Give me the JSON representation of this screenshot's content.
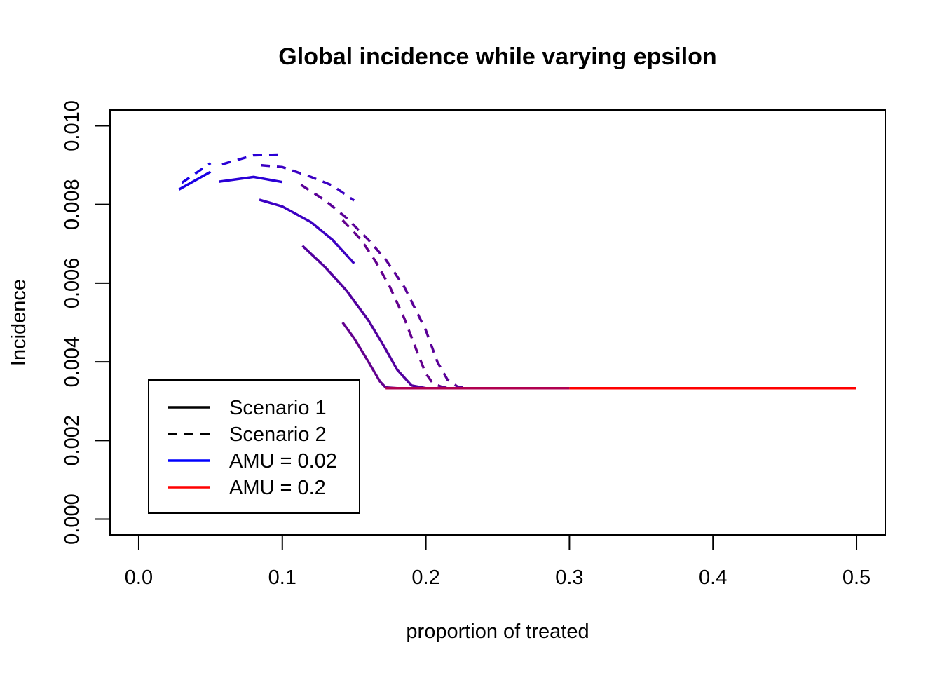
{
  "chart_data": {
    "type": "line",
    "title": "Global incidence while varying epsilon",
    "xlabel": "proportion of treated",
    "ylabel": "Incidence",
    "xlim": [
      -0.02,
      0.52
    ],
    "ylim": [
      -0.0004,
      0.0104
    ],
    "x_ticks": [
      0.0,
      0.1,
      0.2,
      0.3,
      0.4,
      0.5
    ],
    "x_tick_labels": [
      "0.0",
      "0.1",
      "0.2",
      "0.3",
      "0.4",
      "0.5"
    ],
    "y_ticks": [
      0.0,
      0.002,
      0.004,
      0.006,
      0.008,
      0.01
    ],
    "y_tick_labels": [
      "0.000",
      "0.002",
      "0.004",
      "0.006",
      "0.008",
      "0.010"
    ],
    "grid": false,
    "legend_position": "bottom-left",
    "legend": [
      {
        "label": "Scenario 1",
        "color": "#000000",
        "dash": "solid"
      },
      {
        "label": "Scenario 2",
        "color": "#000000",
        "dash": "dashed"
      },
      {
        "label": "AMU = 0.02",
        "color": "#0000FF",
        "dash": "solid"
      },
      {
        "label": "AMU = 0.2",
        "color": "#FF0000",
        "dash": "solid"
      }
    ],
    "series": [
      {
        "dash": "solid",
        "color": "#1A00E6",
        "points": [
          [
            0.028,
            0.00838
          ],
          [
            0.05,
            0.00883
          ]
        ]
      },
      {
        "dash": "dashed",
        "color": "#1A00E6",
        "points": [
          [
            0.03,
            0.00855
          ],
          [
            0.05,
            0.00905
          ]
        ]
      },
      {
        "dash": "solid",
        "color": "#2A00D6",
        "points": [
          [
            0.056,
            0.00858
          ],
          [
            0.08,
            0.0087
          ],
          [
            0.1,
            0.00857
          ]
        ]
      },
      {
        "dash": "dashed",
        "color": "#2A00D6",
        "points": [
          [
            0.058,
            0.00902
          ],
          [
            0.08,
            0.00925
          ],
          [
            0.1,
            0.00927
          ]
        ]
      },
      {
        "dash": "solid",
        "color": "#3C00C3",
        "points": [
          [
            0.084,
            0.00812
          ],
          [
            0.1,
            0.00795
          ],
          [
            0.12,
            0.00755
          ],
          [
            0.135,
            0.0071
          ],
          [
            0.15,
            0.0065
          ]
        ]
      },
      {
        "dash": "dashed",
        "color": "#3C00C3",
        "points": [
          [
            0.085,
            0.009
          ],
          [
            0.1,
            0.00895
          ],
          [
            0.12,
            0.0087
          ],
          [
            0.135,
            0.00848
          ],
          [
            0.15,
            0.0081
          ]
        ]
      },
      {
        "dash": "solid",
        "color": "#52009E",
        "points": [
          [
            0.114,
            0.00695
          ],
          [
            0.13,
            0.0064
          ],
          [
            0.145,
            0.0058
          ],
          [
            0.16,
            0.00505
          ],
          [
            0.17,
            0.00445
          ],
          [
            0.18,
            0.0038
          ],
          [
            0.19,
            0.0034
          ],
          [
            0.2,
            0.00333
          ],
          [
            0.205,
            0.00333
          ]
        ]
      },
      {
        "dash": "dashed",
        "color": "#5A0098",
        "points": [
          [
            0.113,
            0.0085
          ],
          [
            0.13,
            0.0081
          ],
          [
            0.145,
            0.00765
          ],
          [
            0.16,
            0.0071
          ],
          [
            0.172,
            0.0066
          ],
          [
            0.185,
            0.0059
          ],
          [
            0.2,
            0.0048
          ],
          [
            0.208,
            0.004
          ],
          [
            0.215,
            0.00355
          ],
          [
            0.222,
            0.00337
          ],
          [
            0.23,
            0.00333
          ]
        ]
      },
      {
        "dash": "solid",
        "color": "#63008E",
        "points": [
          [
            0.142,
            0.005
          ],
          [
            0.15,
            0.0046
          ],
          [
            0.16,
            0.004
          ],
          [
            0.168,
            0.0035
          ],
          [
            0.172,
            0.00335
          ],
          [
            0.18,
            0.00333
          ]
        ]
      },
      {
        "dash": "dashed",
        "color": "#63008E",
        "points": [
          [
            0.142,
            0.0076
          ],
          [
            0.155,
            0.0071
          ],
          [
            0.165,
            0.00655
          ],
          [
            0.175,
            0.0059
          ],
          [
            0.185,
            0.0051
          ],
          [
            0.195,
            0.00415
          ],
          [
            0.2,
            0.0037
          ],
          [
            0.205,
            0.00345
          ],
          [
            0.212,
            0.00335
          ],
          [
            0.22,
            0.00333
          ]
        ]
      },
      {
        "dash": "solid",
        "color": "#B00050",
        "points": [
          [
            0.172,
            0.00333
          ],
          [
            0.3,
            0.00333
          ]
        ]
      },
      {
        "dash": "solid",
        "color": "#FF0000",
        "points": [
          [
            0.3,
            0.00333
          ],
          [
            0.5,
            0.00333
          ]
        ]
      }
    ]
  }
}
